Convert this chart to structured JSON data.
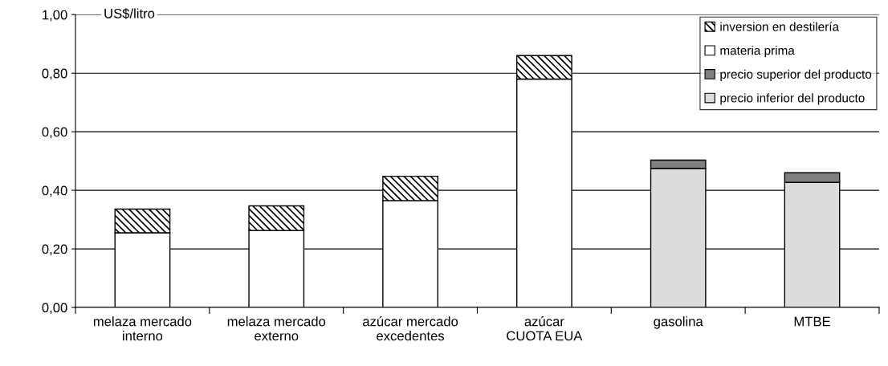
{
  "chart_data": {
    "type": "bar",
    "stacked": true,
    "ylabel": "US$/litro",
    "categories": [
      "melaza mercado interno",
      "melaza mercado externo",
      "azúcar mercado excedentes",
      "azúcar CUOTA EUA",
      "gasolina",
      "MTBE"
    ],
    "series": [
      {
        "name": "materia prima",
        "color": "#ffffff",
        "values": [
          0.255,
          0.263,
          0.365,
          0.78,
          null,
          null
        ]
      },
      {
        "name": "inversion en destilería",
        "color": "#000000",
        "values": [
          0.081,
          0.084,
          0.083,
          0.08,
          null,
          null
        ]
      },
      {
        "name": "precio inferior del producto",
        "color": "#dcdcdc",
        "values": [
          null,
          null,
          null,
          null,
          0.475,
          0.427
        ]
      },
      {
        "name": "precio superior del producto",
        "color": "#808080",
        "values": [
          null,
          null,
          null,
          null,
          0.028,
          0.033
        ]
      }
    ],
    "ylim": [
      0,
      1
    ],
    "yticks": [
      {
        "value": 0,
        "label": "0,00"
      },
      {
        "value": 0.2,
        "label": "0,20"
      },
      {
        "value": 0.4,
        "label": "0,40"
      },
      {
        "value": 0.6,
        "label": "0,60"
      },
      {
        "value": 0.8,
        "label": "0,80"
      },
      {
        "value": 1,
        "label": "1,00"
      }
    ],
    "grid": "y",
    "legend": "top right"
  }
}
